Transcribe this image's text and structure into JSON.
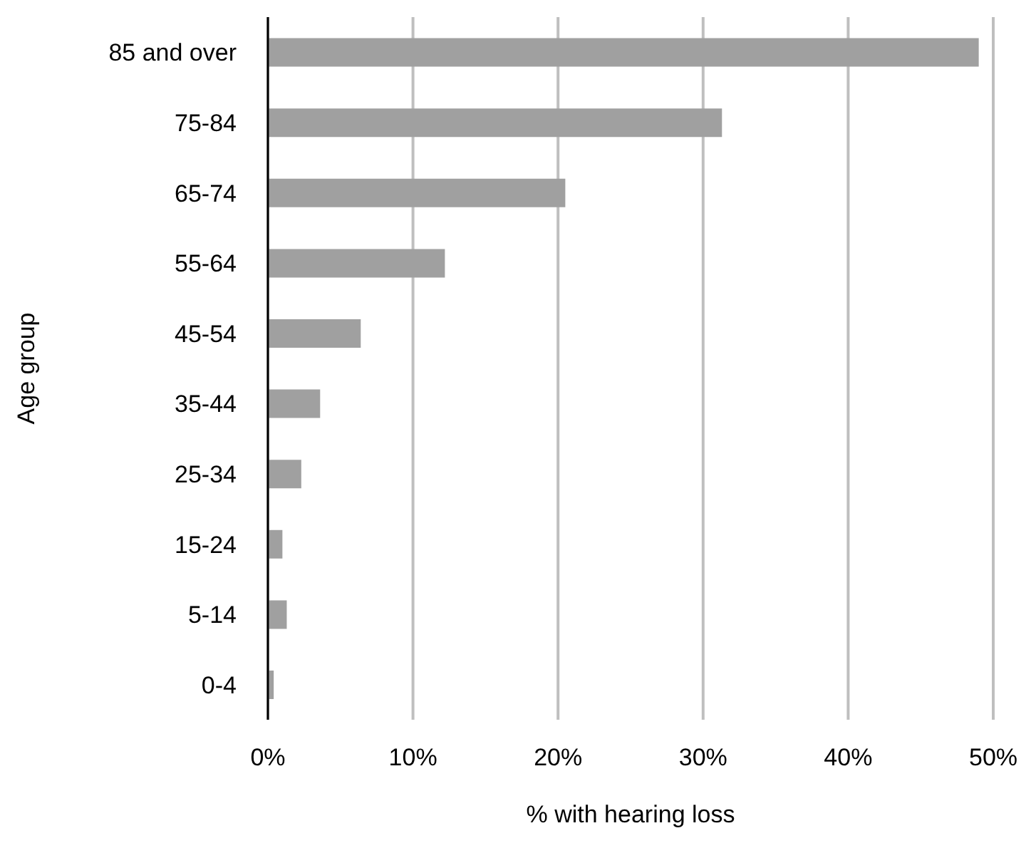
{
  "chart_data": {
    "type": "bar",
    "orientation": "horizontal",
    "xlabel": "% with hearing loss",
    "ylabel": "Age group",
    "categories": [
      "85 and over",
      "75-84",
      "65-74",
      "55-64",
      "45-54",
      "35-44",
      "25-34",
      "15-24",
      "5-14",
      "0-4"
    ],
    "values": [
      49.0,
      31.3,
      20.5,
      12.2,
      6.4,
      3.6,
      2.3,
      1.0,
      1.3,
      0.4
    ],
    "color": "#a0a0a0",
    "xlim": [
      0,
      50
    ],
    "xticks": [
      {
        "value": 0,
        "label": "0%"
      },
      {
        "value": 10,
        "label": "10%"
      },
      {
        "value": 20,
        "label": "20%"
      },
      {
        "value": 30,
        "label": "30%"
      },
      {
        "value": 40,
        "label": "40%"
      },
      {
        "value": 50,
        "label": "50%"
      }
    ],
    "grid": "x"
  }
}
